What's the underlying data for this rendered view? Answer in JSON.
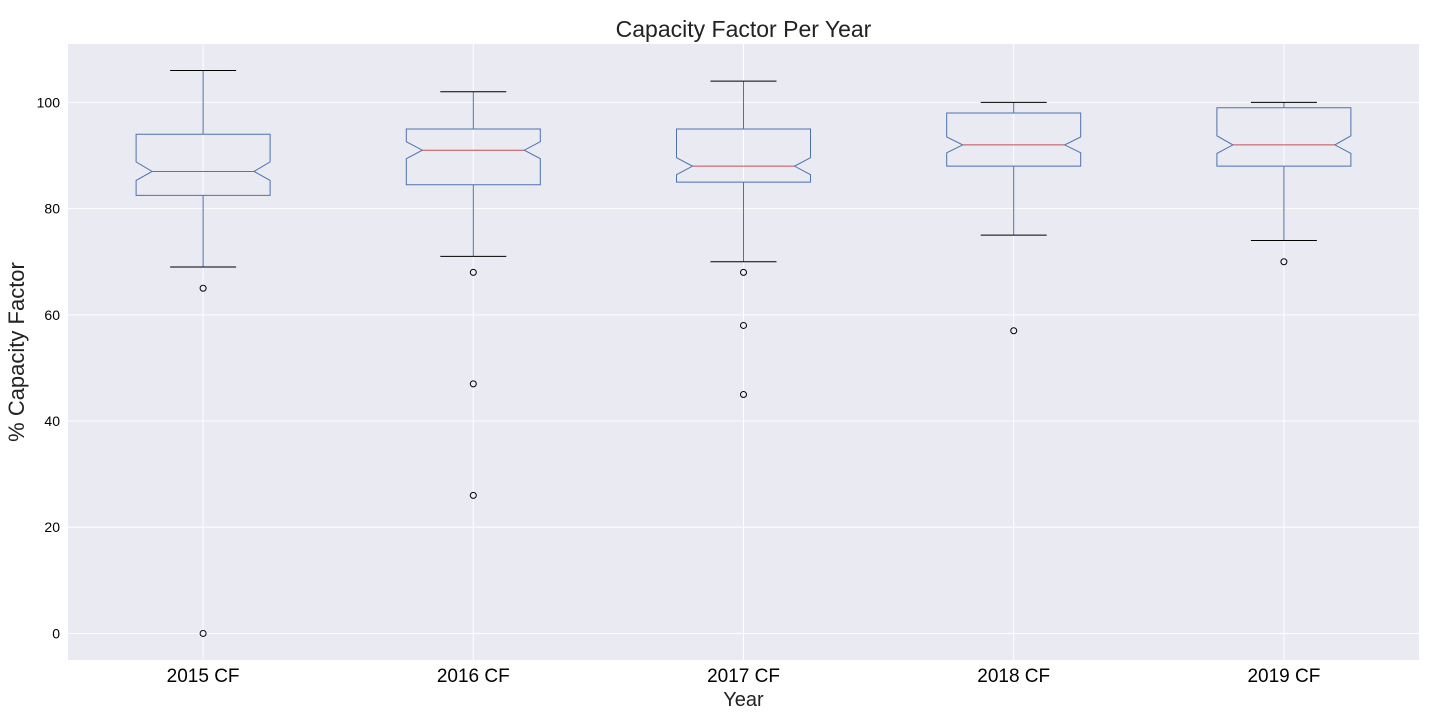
{
  "chart_data": {
    "type": "box",
    "title": "Capacity Factor Per Year",
    "xlabel": "Year",
    "ylabel": "% Capacity Factor",
    "ylim": [
      -5,
      111
    ],
    "yticks": [
      0,
      20,
      40,
      60,
      80,
      100
    ],
    "grid": true,
    "notched": true,
    "categories": [
      "2015 CF",
      "2016 CF",
      "2017 CF",
      "2018 CF",
      "2019 CF"
    ],
    "boxes": [
      {
        "label": "2015 CF",
        "whisker_low": 69,
        "q1": 82.5,
        "median": 87,
        "q3": 94,
        "whisker_high": 106,
        "notch_low": 85.3,
        "notch_high": 88.8,
        "outliers": [
          65,
          0
        ]
      },
      {
        "label": "2016 CF",
        "whisker_low": 71,
        "q1": 84.5,
        "median": 91,
        "q3": 95,
        "whisker_high": 102,
        "notch_low": 89.4,
        "notch_high": 92.6,
        "outliers": [
          68,
          47,
          26
        ]
      },
      {
        "label": "2017 CF",
        "whisker_low": 70,
        "q1": 85,
        "median": 88,
        "q3": 95,
        "whisker_high": 104,
        "notch_low": 86.4,
        "notch_high": 89.6,
        "outliers": [
          68,
          58,
          45
        ]
      },
      {
        "label": "2018 CF",
        "whisker_low": 75,
        "q1": 88,
        "median": 92,
        "q3": 98,
        "whisker_high": 100,
        "notch_low": 90.5,
        "notch_high": 93.5,
        "outliers": [
          57
        ]
      },
      {
        "label": "2019 CF",
        "whisker_low": 74,
        "q1": 88,
        "median": 92,
        "q3": 99,
        "whisker_high": 100,
        "notch_low": 90.4,
        "notch_high": 93.7,
        "outliers": [
          70
        ]
      }
    ],
    "colors": {
      "background": "#eaeaf2",
      "grid": "#ffffff",
      "box": "#4c72b0",
      "median": "#c44e52",
      "cap": "#000000",
      "outlier": "#000000"
    }
  }
}
